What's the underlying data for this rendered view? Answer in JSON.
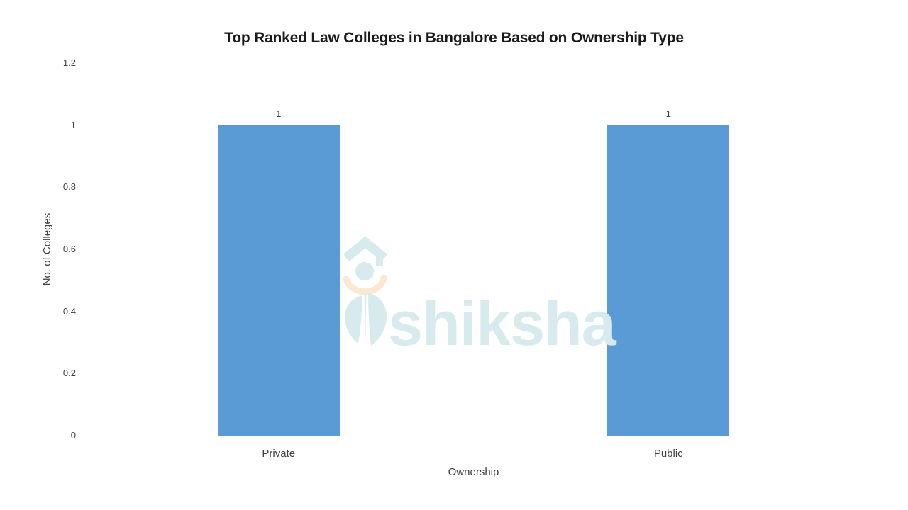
{
  "chart_data": {
    "type": "bar",
    "title": "Top Ranked Law Colleges in Bangalore Based on Ownership Type",
    "categories": [
      "Private",
      "Public"
    ],
    "values": [
      1,
      1
    ],
    "data_labels": [
      "1",
      "1"
    ],
    "xlabel": "Ownership",
    "ylabel": "No. of Colleges",
    "ylim": [
      0,
      1.2
    ],
    "yticks": [
      0,
      0.2,
      0.4,
      0.6,
      0.8,
      1,
      1.2
    ],
    "ytick_labels": [
      "0",
      "0.2",
      "0.4",
      "0.6",
      "0.8",
      "1",
      "1.2"
    ],
    "bar_color": "#5B9BD5",
    "axis_line_color": "#d9d9d9",
    "grid": false,
    "legend": false
  },
  "watermark": {
    "brand": "shiksha",
    "logo_icon": "graduation-cap-figure",
    "color": "#d7eaee",
    "accent_color": "#fbe8d3"
  }
}
